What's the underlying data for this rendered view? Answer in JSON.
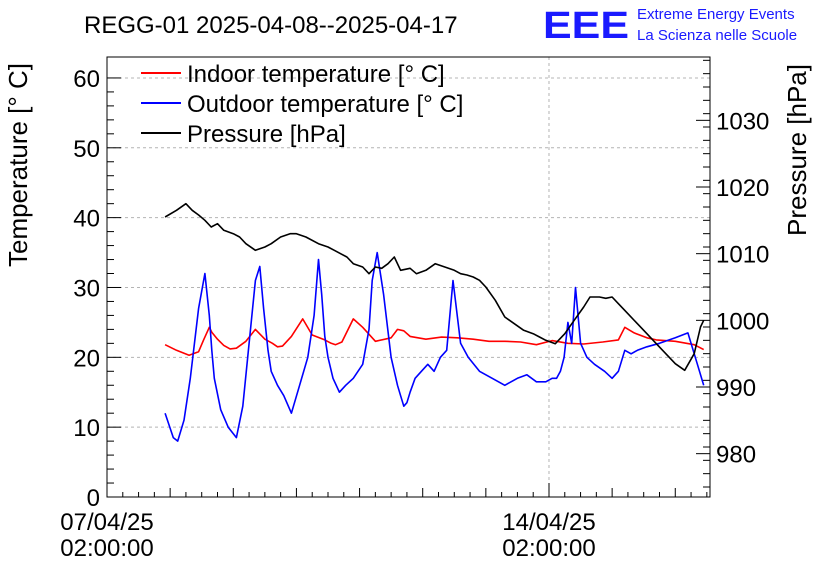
{
  "chart_data": {
    "type": "line",
    "title": "REGG-01 2025-04-08--2025-04-17",
    "ylabel": "Temperature [° C]",
    "y2label": "Pressure [hPa]",
    "ylim": [
      0,
      63
    ],
    "y2lim": [
      973.5,
      1039.5
    ],
    "xlim": [
      0,
      9.55
    ],
    "x_unit": "days since 07/04/25 02:00:00",
    "yticks": [
      0,
      10,
      20,
      30,
      40,
      50,
      60
    ],
    "y2ticks": [
      980,
      990,
      1000,
      1010,
      1020,
      1030
    ],
    "xticks": [
      {
        "x": 0,
        "date": "07/04/25",
        "time": "02:00:00"
      },
      {
        "x": 7,
        "date": "14/04/25",
        "time": "02:00:00"
      }
    ],
    "grid": true,
    "legend_position": "top-left",
    "series": [
      {
        "name": "Indoor temperature [° C]",
        "axis": "left",
        "color": "#ff0000",
        "x": [
          0.92,
          1.1,
          1.3,
          1.45,
          1.53,
          1.62,
          1.66,
          1.75,
          1.85,
          1.95,
          2.05,
          2.2,
          2.35,
          2.5,
          2.62,
          2.7,
          2.78,
          2.92,
          3.1,
          3.25,
          3.45,
          3.55,
          3.62,
          3.72,
          3.9,
          4.05,
          4.25,
          4.5,
          4.6,
          4.7,
          4.8,
          5.05,
          5.3,
          5.55,
          5.8,
          6.05,
          6.3,
          6.55,
          6.8,
          7.05,
          7.3,
          7.55,
          7.85,
          8.1,
          8.2,
          8.35,
          8.55,
          8.7,
          9.0,
          9.3,
          9.45
        ],
        "y": [
          21.8,
          21,
          20.3,
          20.8,
          22.5,
          24.3,
          23.6,
          22.6,
          21.7,
          21.2,
          21.3,
          22.3,
          24.0,
          22.6,
          22.0,
          21.5,
          21.6,
          23.0,
          25.5,
          23.2,
          22.5,
          22.0,
          21.8,
          22.2,
          25.5,
          24.3,
          22.3,
          22.8,
          24.0,
          23.8,
          23.0,
          22.6,
          22.9,
          22.8,
          22.6,
          22.3,
          22.3,
          22.2,
          21.8,
          22.4,
          22.0,
          21.9,
          22.2,
          22.5,
          24.3,
          23.5,
          22.8,
          22.5,
          22.3,
          21.8,
          21.1
        ]
      },
      {
        "name": "Outdoor temperature [° C]",
        "axis": "left",
        "color": "#0000ff",
        "x": [
          0.92,
          1.05,
          1.12,
          1.22,
          1.32,
          1.45,
          1.55,
          1.62,
          1.66,
          1.7,
          1.8,
          1.92,
          2.05,
          2.15,
          2.25,
          2.35,
          2.42,
          2.48,
          2.55,
          2.6,
          2.7,
          2.8,
          2.92,
          3.05,
          3.18,
          3.28,
          3.35,
          3.4,
          3.45,
          3.5,
          3.58,
          3.68,
          3.78,
          3.9,
          4.05,
          4.15,
          4.2,
          4.28,
          4.38,
          4.5,
          4.6,
          4.65,
          4.7,
          4.75,
          4.8,
          4.88,
          4.98,
          5.08,
          5.18,
          5.28,
          5.38,
          5.48,
          5.6,
          5.72,
          5.9,
          6.1,
          6.3,
          6.5,
          6.65,
          6.8,
          6.95,
          7.05,
          7.12,
          7.18,
          7.24,
          7.3,
          7.36,
          7.42,
          7.5,
          7.6,
          7.72,
          7.88,
          8.0,
          8.1,
          8.2,
          8.3,
          8.4,
          8.55,
          8.75,
          9.0,
          9.2,
          9.35,
          9.45
        ],
        "y": [
          12,
          8.5,
          8.0,
          11,
          17,
          27,
          32,
          26,
          21,
          17,
          12.5,
          10,
          8.5,
          13,
          22,
          31,
          33,
          27,
          21,
          18,
          16,
          14.5,
          12,
          16,
          20,
          26,
          34,
          29,
          23,
          20,
          17,
          15,
          16,
          17,
          19,
          24,
          31,
          35,
          29,
          20,
          16,
          14.5,
          13,
          13.5,
          15,
          17,
          18,
          19,
          18,
          20,
          21,
          31,
          22,
          20,
          18,
          17,
          16,
          17,
          17.5,
          16.5,
          16.5,
          17,
          17,
          18,
          20,
          25,
          22,
          30,
          22,
          20,
          19,
          18,
          17,
          18,
          21,
          20.5,
          21,
          21.5,
          22,
          22.8,
          23.5,
          19,
          16
        ]
      },
      {
        "name": "Pressure [hPa]",
        "axis": "right",
        "color": "#000000",
        "x": [
          0.92,
          1.1,
          1.25,
          1.35,
          1.45,
          1.55,
          1.65,
          1.75,
          1.85,
          2.0,
          2.1,
          2.2,
          2.35,
          2.5,
          2.6,
          2.75,
          2.9,
          3.0,
          3.15,
          3.35,
          3.5,
          3.6,
          3.7,
          3.8,
          3.9,
          4.05,
          4.15,
          4.25,
          4.35,
          4.45,
          4.55,
          4.65,
          4.8,
          4.9,
          5.05,
          5.2,
          5.35,
          5.5,
          5.6,
          5.7,
          5.8,
          5.9,
          6.0,
          6.15,
          6.3,
          6.45,
          6.6,
          6.75,
          6.85,
          6.95,
          7.1,
          7.25,
          7.4,
          7.55,
          7.65,
          7.8,
          7.9,
          8.0,
          8.1,
          8.25,
          8.4,
          8.55,
          8.7,
          8.85,
          9.0,
          9.15,
          9.3,
          9.4,
          9.45
        ],
        "y": [
          1015.5,
          1016.5,
          1017.5,
          1016.5,
          1015.8,
          1015.0,
          1014.0,
          1014.5,
          1013.5,
          1013.0,
          1012.5,
          1011.5,
          1010.5,
          1011.0,
          1011.5,
          1012.5,
          1013.0,
          1013.0,
          1012.5,
          1011.5,
          1011.0,
          1010.5,
          1010.0,
          1009.5,
          1008.5,
          1008.0,
          1007.0,
          1008.0,
          1007.8,
          1008.5,
          1009.5,
          1007.5,
          1007.8,
          1007.0,
          1007.5,
          1008.5,
          1008.0,
          1007.5,
          1007.0,
          1006.8,
          1006.5,
          1006.0,
          1005.0,
          1003.0,
          1000.5,
          999.5,
          998.5,
          998.0,
          997.5,
          997.0,
          996.5,
          998.0,
          1000.0,
          1002.0,
          1003.5,
          1003.5,
          1003.3,
          1003.5,
          1002.5,
          1001.0,
          999.5,
          998.0,
          996.5,
          995.0,
          993.5,
          992.5,
          995.0,
          999.0,
          1000.0
        ]
      }
    ]
  },
  "logo": {
    "text": "EEE",
    "line1": "Extreme Energy Events",
    "line2": "La Scienza nelle Scuole"
  }
}
